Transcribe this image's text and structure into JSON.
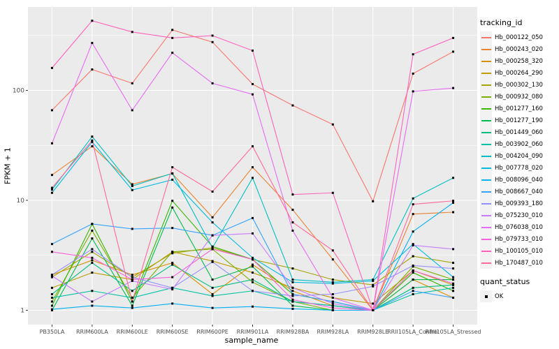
{
  "figure": {
    "x_axis_title": "sample_name",
    "y_axis_title": "FPKM + 1",
    "legend": {
      "tracking_title": "tracking_id",
      "quant_title": "quant_status",
      "quant_item_label": "OK"
    }
  },
  "chart_data": {
    "type": "line",
    "title": "",
    "xlabel": "sample_name",
    "ylabel": "FPKM + 1",
    "y_scale": "log10",
    "y_ticks": [
      1,
      10,
      100
    ],
    "y_minor_gridlines": [
      3.162,
      31.62,
      316.2
    ],
    "ylim": [
      0.75,
      560
    ],
    "grid_on": true,
    "legend_position": "right",
    "panel_background": "#EBEBEB",
    "grid_color": "#FFFFFF",
    "point_shape": "square",
    "point_color": "#000000",
    "point_legend_label": "OK",
    "categories": [
      "PB350LA",
      "RRIM600LA",
      "RRIM600LE",
      "RRIM600SE",
      "RRIM600PE",
      "RRIM901LA",
      "RRIM928BA",
      "RRIM928LA",
      "RRIM928LE",
      "RRII105LA_Control",
      "RRII105LA_Stressed"
    ],
    "series": [
      {
        "name": "Hb_000122_050",
        "color": "#F8766D",
        "values": [
          66,
          155,
          116,
          355,
          275,
          114,
          73,
          49,
          9.8,
          142,
          225
        ]
      },
      {
        "name": "Hb_000243_020",
        "color": "#EA8331",
        "values": [
          17,
          31,
          14,
          17.5,
          7.0,
          20,
          8.2,
          2.9,
          1.0,
          7.5,
          7.8
        ]
      },
      {
        "name": "Hb_000258_320",
        "color": "#D89000",
        "values": [
          2.1,
          2.85,
          2.1,
          2.7,
          1.4,
          2.6,
          1.5,
          1.1,
          1.0,
          1.9,
          1.3
        ]
      },
      {
        "name": "Hb_000264_290",
        "color": "#C09B00",
        "values": [
          1.6,
          2.2,
          1.9,
          3.4,
          2.8,
          2.2,
          1.6,
          1.3,
          1.15,
          2.3,
          1.7
        ]
      },
      {
        "name": "Hb_000302_130",
        "color": "#A3A500",
        "values": [
          2.0,
          3.4,
          2.0,
          3.3,
          3.7,
          2.9,
          2.4,
          1.9,
          1.7,
          3.1,
          2.7
        ]
      },
      {
        "name": "Hb_000932_080",
        "color": "#7CAE00",
        "values": [
          1.2,
          5.3,
          1.3,
          3.4,
          3.6,
          1.8,
          1.2,
          1.0,
          1.0,
          2.5,
          1.9
        ]
      },
      {
        "name": "Hb_001277_160",
        "color": "#39B600",
        "values": [
          1.1,
          6.1,
          1.2,
          9.9,
          3.8,
          2.9,
          1.4,
          1.2,
          1.0,
          2.2,
          1.5
        ]
      },
      {
        "name": "Hb_001277_190",
        "color": "#00BB4E",
        "values": [
          1.0,
          4.5,
          1.1,
          8.6,
          1.9,
          2.5,
          1.1,
          1.0,
          1.0,
          1.9,
          1.9
        ]
      },
      {
        "name": "Hb_001449_060",
        "color": "#00BF7D",
        "values": [
          1.4,
          2.7,
          1.5,
          2.6,
          1.6,
          1.9,
          1.2,
          1.1,
          1.0,
          1.6,
          1.7
        ]
      },
      {
        "name": "Hb_003902_060",
        "color": "#00C1A3",
        "values": [
          1.3,
          1.5,
          1.3,
          1.6,
          1.35,
          1.5,
          1.2,
          1.1,
          1.0,
          1.4,
          1.6
        ]
      },
      {
        "name": "Hb_004204_090",
        "color": "#00BFC4",
        "values": [
          12.5,
          38,
          13.5,
          17.6,
          3.7,
          16,
          1.9,
          1.8,
          1.9,
          10.4,
          16
        ]
      },
      {
        "name": "Hb_007778_020",
        "color": "#00BAE0",
        "values": [
          11.7,
          34,
          12.4,
          15.4,
          6.3,
          3.0,
          1.8,
          1.75,
          1.85,
          4.0,
          2.0
        ]
      },
      {
        "name": "Hb_008096_040",
        "color": "#00B0F6",
        "values": [
          1.02,
          1.1,
          1.05,
          1.15,
          1.05,
          1.08,
          1.03,
          1.0,
          1.0,
          5.2,
          9.5
        ]
      },
      {
        "name": "Hb_008667_040",
        "color": "#35A2FF",
        "values": [
          4.0,
          6.1,
          5.5,
          5.6,
          4.8,
          6.9,
          1.4,
          1.2,
          1.0,
          1.5,
          1.3
        ]
      },
      {
        "name": "Hb_009393_180",
        "color": "#9590FF",
        "values": [
          2.1,
          3.6,
          2.0,
          1.6,
          2.75,
          1.5,
          1.35,
          1.4,
          1.65,
          2.55,
          2.4
        ]
      },
      {
        "name": "Hb_075230_010",
        "color": "#C77CFF",
        "values": [
          2.05,
          1.2,
          1.85,
          1.55,
          4.8,
          5.0,
          1.6,
          1.15,
          1.0,
          3.9,
          3.6
        ]
      },
      {
        "name": "Hb_076038_010",
        "color": "#E76BF3",
        "values": [
          33,
          270,
          66,
          220,
          116,
          92,
          5.3,
          1.3,
          1.0,
          98,
          105
        ]
      },
      {
        "name": "Hb_079733_010",
        "color": "#FA62DB",
        "values": [
          3.4,
          3.0,
          1.9,
          2.0,
          3.6,
          2.9,
          1.25,
          1.05,
          1.0,
          2.3,
          1.75
        ]
      },
      {
        "name": "Hb_100105_010",
        "color": "#FF62BC",
        "values": [
          160,
          430,
          340,
          300,
          315,
          230,
          11.3,
          11.7,
          1.0,
          213,
          300
        ]
      },
      {
        "name": "Hb_170487_010",
        "color": "#FF6A98",
        "values": [
          13,
          35,
          1.2,
          20,
          12,
          31,
          6.3,
          3.5,
          1.0,
          9.2,
          9.9
        ]
      }
    ]
  }
}
